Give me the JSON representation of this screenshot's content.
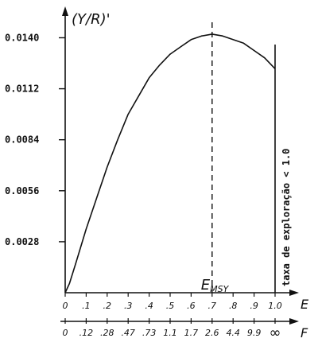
{
  "chart_data": {
    "type": "line",
    "ylabel": "(Y/R)'",
    "xlabel": "E",
    "x2label": "F",
    "ylim": [
      0,
      0.0152
    ],
    "xlim": [
      0,
      1.0
    ],
    "yticks": [
      {
        "value": 0.0028,
        "label": "0.0028"
      },
      {
        "value": 0.0056,
        "label": "0.0056"
      },
      {
        "value": 0.0084,
        "label": "0.0084"
      },
      {
        "value": 0.0112,
        "label": "0.0112"
      },
      {
        "value": 0.014,
        "label": "0.0140"
      }
    ],
    "xticks": [
      {
        "value": 0.0,
        "label": "0"
      },
      {
        "value": 0.1,
        "label": ".1"
      },
      {
        "value": 0.2,
        "label": ".2"
      },
      {
        "value": 0.3,
        "label": ".3"
      },
      {
        "value": 0.4,
        "label": ".4"
      },
      {
        "value": 0.5,
        "label": ".5"
      },
      {
        "value": 0.6,
        "label": ".6"
      },
      {
        "value": 0.7,
        "label": ".7"
      },
      {
        "value": 0.8,
        "label": ".8"
      },
      {
        "value": 0.9,
        "label": ".9"
      },
      {
        "value": 1.0,
        "label": "1.0"
      }
    ],
    "x2ticks": [
      {
        "value": 0.0,
        "label": "0"
      },
      {
        "value": 0.1,
        "label": ".12"
      },
      {
        "value": 0.2,
        "label": ".28"
      },
      {
        "value": 0.3,
        "label": ".47"
      },
      {
        "value": 0.4,
        "label": ".73"
      },
      {
        "value": 0.5,
        "label": "1.1"
      },
      {
        "value": 0.6,
        "label": "1.7"
      },
      {
        "value": 0.7,
        "label": "2.6"
      },
      {
        "value": 0.8,
        "label": "4.4"
      },
      {
        "value": 0.9,
        "label": "9.9"
      },
      {
        "value": 1.0,
        "label": "∞"
      }
    ],
    "series": [
      {
        "x": [
          0.0,
          0.02,
          0.05,
          0.1,
          0.15,
          0.2,
          0.25,
          0.3,
          0.35,
          0.4,
          0.45,
          0.5,
          0.55,
          0.6,
          0.65,
          0.7,
          0.75,
          0.8,
          0.85,
          0.9,
          0.95,
          1.0
        ],
        "y": [
          0.0,
          0.0005,
          0.0016,
          0.0035,
          0.0052,
          0.0069,
          0.0084,
          0.0098,
          0.0108,
          0.0118,
          0.0125,
          0.0131,
          0.0135,
          0.0139,
          0.0141,
          0.0142,
          0.0141,
          0.0139,
          0.0137,
          0.0133,
          0.0129,
          0.0123
        ]
      }
    ],
    "vlines": [
      {
        "x": 0.7,
        "style": "dashed",
        "label": "MSY",
        "label_prefix": "E"
      },
      {
        "x": 1.0,
        "style": "solid",
        "label": "taxa de exploração < 1.0"
      }
    ]
  }
}
